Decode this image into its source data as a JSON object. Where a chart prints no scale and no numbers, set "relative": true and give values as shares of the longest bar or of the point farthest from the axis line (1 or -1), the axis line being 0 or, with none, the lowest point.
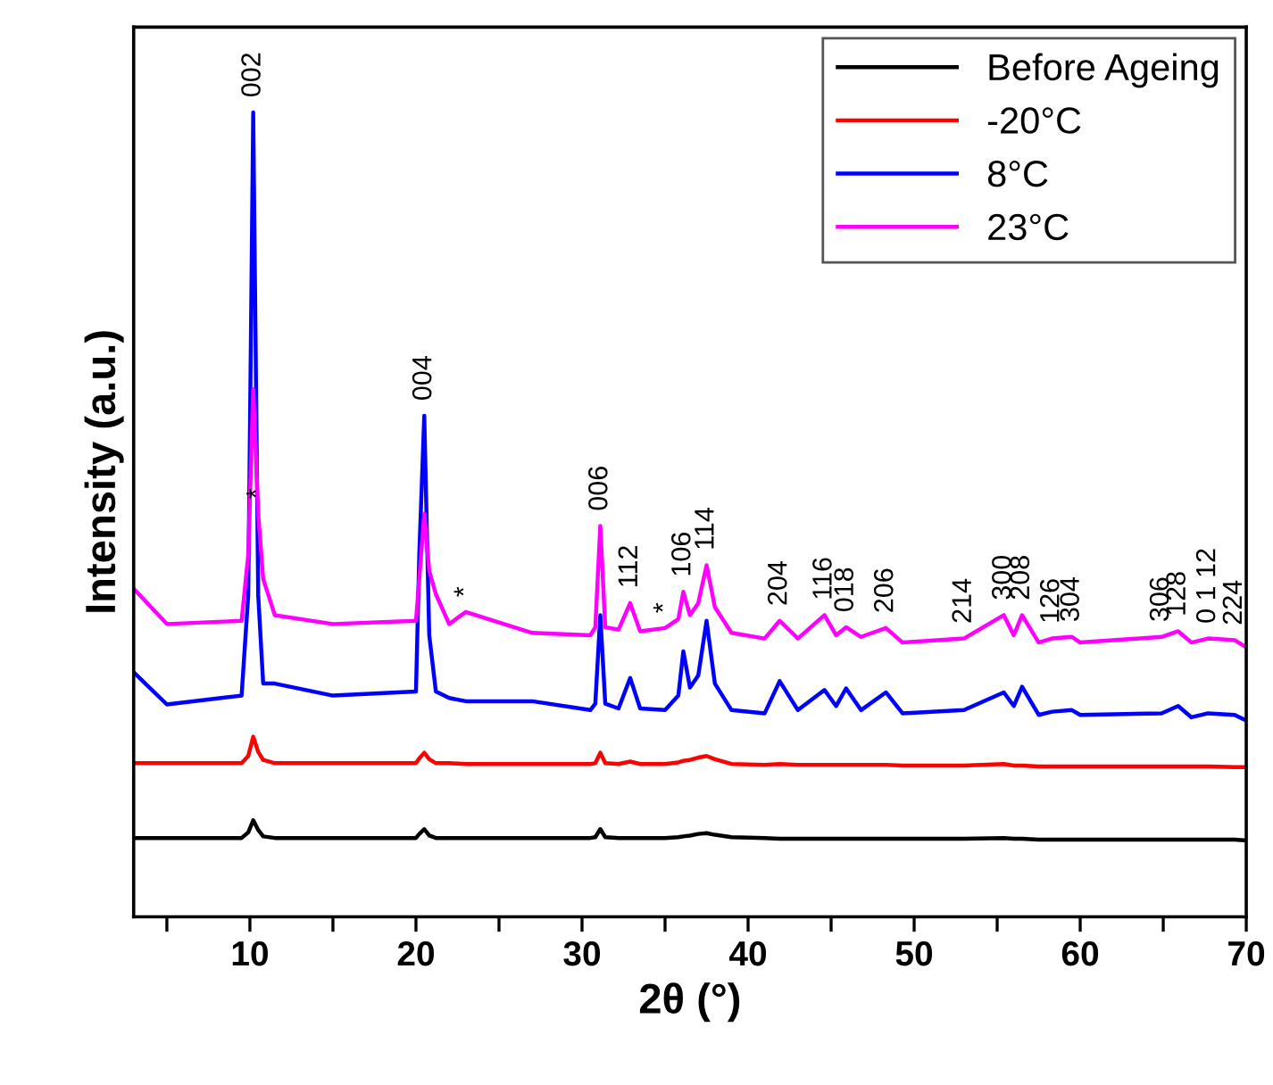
{
  "chart_data": {
    "type": "line",
    "xlabel": "2θ (°)",
    "ylabel": "Intensity (a.u.)",
    "relative": true,
    "xlim": [
      3,
      70
    ],
    "xticks": [
      {
        "value": 5,
        "label": null
      },
      10,
      {
        "value": 15,
        "label": null
      },
      20,
      {
        "value": 25,
        "label": null
      },
      30,
      {
        "value": 35,
        "label": null
      },
      40,
      {
        "value": 45,
        "label": null
      },
      50,
      {
        "value": 55,
        "label": null
      },
      60,
      {
        "value": 65,
        "label": null
      },
      70
    ],
    "legend": "top right",
    "grid": false,
    "x": [
      3,
      5,
      9.5,
      9.9,
      10.2,
      10.5,
      10.8,
      11.5,
      15,
      20,
      20.2,
      20.5,
      20.8,
      21.2,
      22,
      23,
      27,
      30.5,
      30.8,
      31.1,
      31.4,
      32.2,
      32.9,
      33.5,
      35,
      35.8,
      36.1,
      36.5,
      37,
      37.5,
      38,
      39,
      41,
      41.9,
      43,
      44.6,
      45.3,
      45.9,
      46.8,
      48.3,
      49.3,
      53,
      55.4,
      56,
      56.5,
      57.5,
      58.3,
      59.5,
      60,
      64.9,
      65.9,
      66.7,
      67.7,
      69.3,
      70
    ],
    "series": [
      {
        "name": "Before Ageing",
        "color": "#000000",
        "values": [
          0.098,
          0.098,
          0.098,
          0.105,
          0.12,
          0.108,
          0.1,
          0.098,
          0.098,
          0.098,
          0.103,
          0.109,
          0.101,
          0.098,
          0.098,
          0.098,
          0.098,
          0.098,
          0.099,
          0.109,
          0.099,
          0.098,
          0.098,
          0.098,
          0.098,
          0.099,
          0.1,
          0.101,
          0.103,
          0.104,
          0.102,
          0.099,
          0.098,
          0.097,
          0.097,
          0.097,
          0.097,
          0.097,
          0.097,
          0.097,
          0.097,
          0.097,
          0.098,
          0.097,
          0.097,
          0.096,
          0.096,
          0.096,
          0.096,
          0.096,
          0.096,
          0.096,
          0.096,
          0.096,
          0.095
        ]
      },
      {
        "name": "-20°C",
        "color": "#ff0000",
        "values": [
          0.191,
          0.191,
          0.191,
          0.2,
          0.224,
          0.205,
          0.195,
          0.191,
          0.191,
          0.191,
          0.197,
          0.204,
          0.196,
          0.191,
          0.191,
          0.19,
          0.19,
          0.19,
          0.191,
          0.204,
          0.191,
          0.19,
          0.193,
          0.19,
          0.19,
          0.192,
          0.194,
          0.195,
          0.198,
          0.2,
          0.196,
          0.19,
          0.189,
          0.19,
          0.189,
          0.189,
          0.189,
          0.189,
          0.189,
          0.189,
          0.188,
          0.188,
          0.19,
          0.188,
          0.188,
          0.187,
          0.187,
          0.187,
          0.187,
          0.187,
          0.187,
          0.187,
          0.187,
          0.186,
          0.186
        ]
      },
      {
        "name": "8°C",
        "color": "#0000ff",
        "values": [
          0.304,
          0.264,
          0.275,
          0.4,
          1.0,
          0.4,
          0.29,
          0.29,
          0.275,
          0.28,
          0.45,
          0.623,
          0.35,
          0.28,
          0.272,
          0.268,
          0.268,
          0.257,
          0.265,
          0.375,
          0.265,
          0.259,
          0.297,
          0.259,
          0.257,
          0.275,
          0.33,
          0.285,
          0.3,
          0.368,
          0.29,
          0.257,
          0.253,
          0.293,
          0.257,
          0.282,
          0.262,
          0.284,
          0.257,
          0.279,
          0.253,
          0.257,
          0.279,
          0.262,
          0.286,
          0.251,
          0.255,
          0.257,
          0.251,
          0.253,
          0.262,
          0.248,
          0.253,
          0.251,
          0.244
        ]
      },
      {
        "name": "23°C",
        "color": "#ff00ff",
        "values": [
          0.408,
          0.364,
          0.368,
          0.45,
          0.656,
          0.501,
          0.42,
          0.375,
          0.364,
          0.368,
          0.42,
          0.501,
          0.43,
          0.401,
          0.364,
          0.379,
          0.353,
          0.35,
          0.36,
          0.486,
          0.36,
          0.357,
          0.39,
          0.355,
          0.359,
          0.37,
          0.404,
          0.375,
          0.39,
          0.437,
          0.385,
          0.353,
          0.346,
          0.368,
          0.346,
          0.375,
          0.35,
          0.36,
          0.348,
          0.359,
          0.341,
          0.346,
          0.375,
          0.35,
          0.375,
          0.341,
          0.346,
          0.348,
          0.341,
          0.348,
          0.355,
          0.341,
          0.346,
          0.344,
          0.335
        ]
      }
    ],
    "annotations": [
      {
        "text": "002",
        "x": 10.2,
        "y": 1.0
      },
      {
        "text": "*",
        "x": 10.5,
        "y": 0.501
      },
      {
        "text": "004",
        "x": 20.5,
        "y": 0.623
      },
      {
        "text": "*",
        "x": 23,
        "y": 0.379
      },
      {
        "text": "006",
        "x": 31.1,
        "y": 0.486
      },
      {
        "text": "112",
        "x": 32.9,
        "y": 0.39
      },
      {
        "text": "*",
        "x": 35,
        "y": 0.359
      },
      {
        "text": "106",
        "x": 36.1,
        "y": 0.404
      },
      {
        "text": "114",
        "x": 37.5,
        "y": 0.437
      },
      {
        "text": "204",
        "x": 41.9,
        "y": 0.368
      },
      {
        "text": "116",
        "x": 44.6,
        "y": 0.375
      },
      {
        "text": "018",
        "x": 45.9,
        "y": 0.36
      },
      {
        "text": "206",
        "x": 48.3,
        "y": 0.359
      },
      {
        "text": "214",
        "x": 53,
        "y": 0.346
      },
      {
        "text": "300",
        "x": 55.4,
        "y": 0.375
      },
      {
        "text": "208",
        "x": 56.5,
        "y": 0.375
      },
      {
        "text": "126",
        "x": 58.3,
        "y": 0.346
      },
      {
        "text": "304",
        "x": 59.5,
        "y": 0.348
      },
      {
        "text": "306",
        "x": 64.9,
        "y": 0.348
      },
      {
        "text": "128",
        "x": 65.9,
        "y": 0.355
      },
      {
        "text": "0 1 12",
        "x": 67.7,
        "y": 0.346
      },
      {
        "text": "224",
        "x": 69.3,
        "y": 0.344
      }
    ]
  }
}
